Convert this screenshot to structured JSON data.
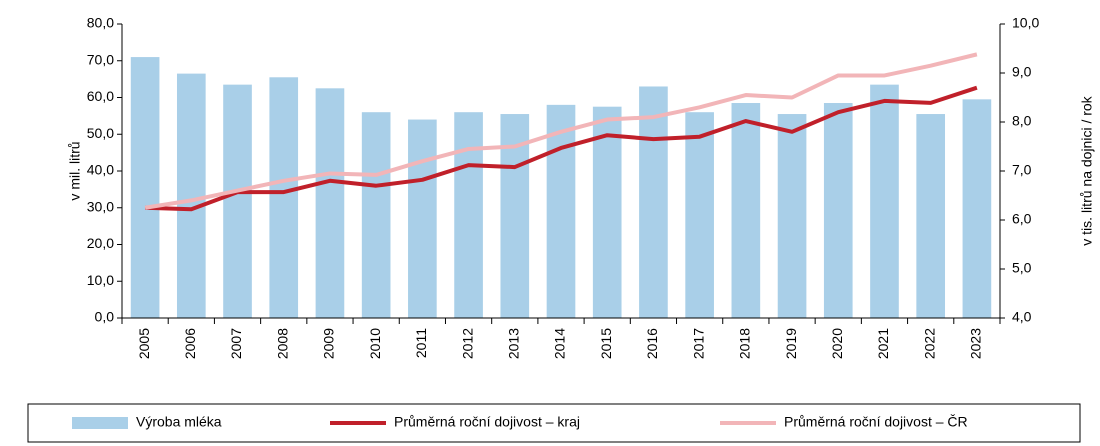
{
  "chart_data": {
    "type": "bar-line",
    "y_label": "v mil. litrů",
    "y2_label": "v tis. litrů na dojnici / rok",
    "categories": [
      "2005",
      "2006",
      "2007",
      "2008",
      "2009",
      "2010",
      "2011",
      "2012",
      "2013",
      "2014",
      "2015",
      "2016",
      "2017",
      "2018",
      "2019",
      "2020",
      "2021",
      "2022",
      "2023"
    ],
    "series": [
      {
        "name": "Výroba mléka",
        "type": "bar",
        "color": "#a9cfe8",
        "values": [
          71,
          66.5,
          63.5,
          65.5,
          62.5,
          56,
          54,
          56,
          55.5,
          58,
          57.5,
          63,
          56,
          58.5,
          55.5,
          58.5,
          63.5,
          55.5,
          59.5
        ]
      },
      {
        "name": "Průměrná roční dojivost – kraj",
        "type": "line",
        "axis": "y2",
        "color": "#c0202a",
        "values": [
          6.25,
          6.22,
          6.57,
          6.57,
          6.8,
          6.7,
          6.82,
          7.12,
          7.08,
          7.47,
          7.73,
          7.65,
          7.7,
          8.02,
          7.8,
          8.2,
          8.43,
          8.39,
          8.7
        ]
      },
      {
        "name": "Průměrná roční dojivost – ČR",
        "type": "line",
        "axis": "y2",
        "color": "#f2b5b8",
        "values": [
          6.25,
          6.4,
          6.6,
          6.8,
          6.95,
          6.92,
          7.2,
          7.45,
          7.5,
          7.8,
          8.05,
          8.1,
          8.3,
          8.55,
          8.5,
          8.95,
          8.95,
          9.15,
          9.38
        ]
      }
    ],
    "ylim": [
      0,
      80
    ],
    "yticks": [
      {
        "value": 0,
        "label": "0,0"
      },
      {
        "value": 10,
        "label": "10,0"
      },
      {
        "value": 20,
        "label": "20,0"
      },
      {
        "value": 30,
        "label": "30,0"
      },
      {
        "value": 40,
        "label": "40,0"
      },
      {
        "value": 50,
        "label": "50,0"
      },
      {
        "value": 60,
        "label": "60,0"
      },
      {
        "value": 70,
        "label": "70,0"
      },
      {
        "value": 80,
        "label": "80,0"
      }
    ],
    "y2lim": [
      4,
      10
    ],
    "y2ticks": [
      {
        "value": 4,
        "label": "4,0"
      },
      {
        "value": 5,
        "label": "5,0"
      },
      {
        "value": 6,
        "label": "6,0"
      },
      {
        "value": 7,
        "label": "7,0"
      },
      {
        "value": 8,
        "label": "8,0"
      },
      {
        "value": 9,
        "label": "9,0"
      },
      {
        "value": 10,
        "label": "10,0"
      }
    ],
    "grid": false,
    "legend": "bottom"
  }
}
